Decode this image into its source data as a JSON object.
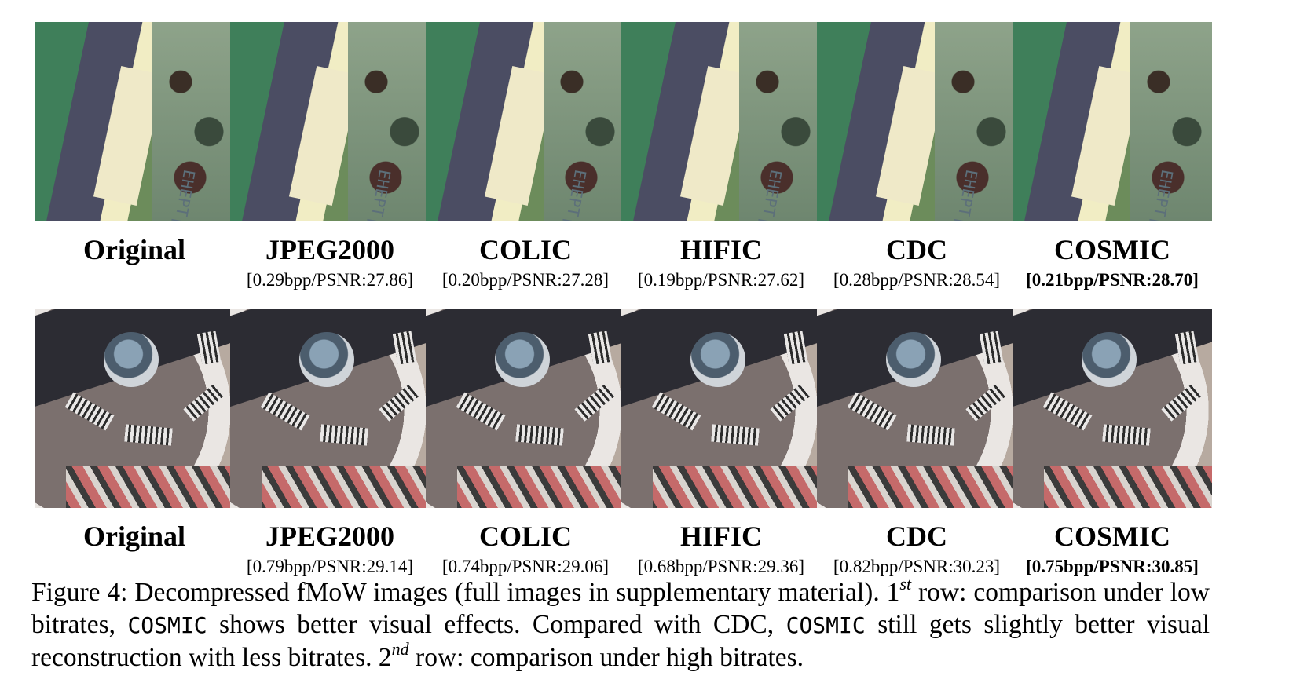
{
  "rows": [
    {
      "panels": [
        {
          "label": "Original",
          "metric": ""
        },
        {
          "label": "JPEG2000",
          "metric": "[0.29bpp/PSNR:27.86]"
        },
        {
          "label": "COLIC",
          "metric": "[0.20bpp/PSNR:27.28]"
        },
        {
          "label": "HIFIC",
          "metric": "[0.19bpp/PSNR:27.62]"
        },
        {
          "label": "CDC",
          "metric": "[0.28bpp/PSNR:28.54]"
        },
        {
          "label": "COSMIC",
          "metric": "[0.21bpp/PSNR:28.70]"
        }
      ]
    },
    {
      "panels": [
        {
          "label": "Original",
          "metric": ""
        },
        {
          "label": "JPEG2000",
          "metric": "[0.79bpp/PSNR:29.14]"
        },
        {
          "label": "COLIC",
          "metric": "[0.74bpp/PSNR:29.06]"
        },
        {
          "label": "HIFIC",
          "metric": "[0.68bpp/PSNR:29.36]"
        },
        {
          "label": "CDC",
          "metric": "[0.82bpp/PSNR:30.23]"
        },
        {
          "label": "COSMIC",
          "metric": "[0.75bpp/PSNR:30.85]"
        }
      ]
    }
  ],
  "sign_text": "EHEPT|R",
  "caption": {
    "part1": "Figure 4: Decompressed fMoW images (full images in supplementary material). 1",
    "sup1": "st",
    "part2": " row: comparison under low bitrates, ",
    "mono1": "COSMIC",
    "part3": " shows better visual effects. Compared with CDC, ",
    "mono2": "COSMIC",
    "part4": " still gets slightly better visual reconstruction with less bitrates. 2",
    "sup2": "nd",
    "part5": " row: comparison under high bitrates."
  }
}
